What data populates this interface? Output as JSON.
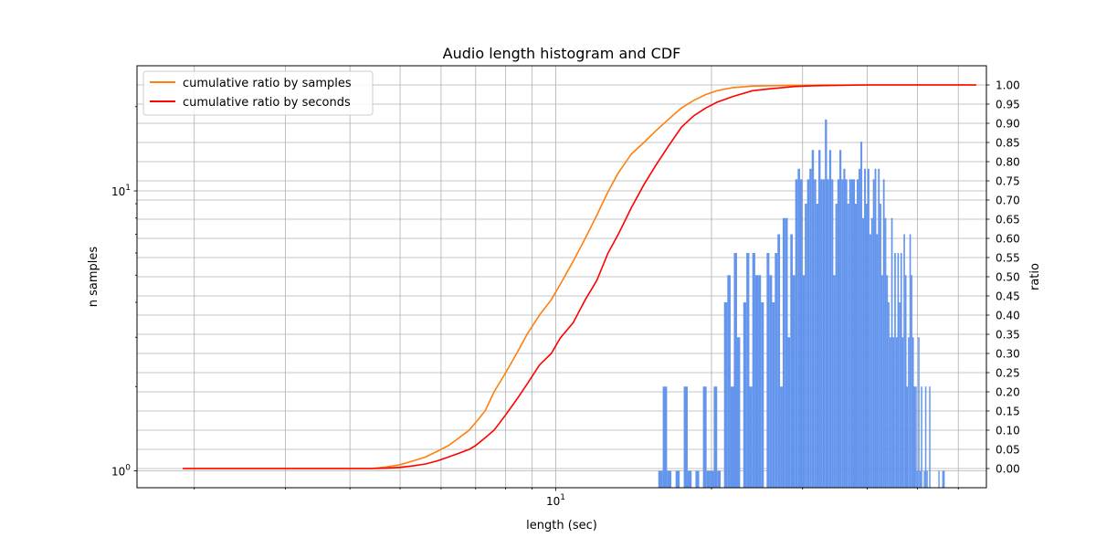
{
  "chart_data": {
    "type": "bar",
    "title": "Audio length histogram and CDF",
    "xlabel": "length (sec)",
    "ylabel": "n samples",
    "y2label": "ratio",
    "x_scale": "log",
    "y_scale": "log",
    "xlim": [
      1.55,
      68
    ],
    "ylim": [
      0.87,
      28
    ],
    "y2lim": [
      -0.05,
      1.05
    ],
    "x_tick_labels": [
      {
        "value": 10,
        "label": "10^1"
      }
    ],
    "y_tick_labels": [
      {
        "value": 1,
        "label": "10^0"
      },
      {
        "value": 10,
        "label": "10^1"
      }
    ],
    "y2_tick_labels": [
      "0.00",
      "0.05",
      "0.10",
      "0.15",
      "0.20",
      "0.25",
      "0.30",
      "0.35",
      "0.40",
      "0.45",
      "0.50",
      "0.55",
      "0.60",
      "0.65",
      "0.70",
      "0.75",
      "0.80",
      "0.85",
      "0.90",
      "0.95",
      "1.00"
    ],
    "grid": true,
    "legend_position": "upper-left",
    "bar_color": "#6495ED",
    "histogram": {
      "bin_edges_approx": "200 equal-width bins from 1.9 to 65 sec",
      "counts": [
        0,
        0,
        0,
        0,
        0,
        0,
        0,
        0,
        0,
        0,
        0,
        0,
        0,
        0,
        0,
        0,
        0,
        0,
        0,
        0,
        0,
        0,
        0,
        0,
        0,
        0,
        0,
        0,
        0,
        0,
        0,
        0,
        0,
        0,
        0,
        0,
        0,
        0,
        0,
        0,
        0,
        0,
        0,
        0,
        1,
        2,
        1,
        0,
        1,
        0,
        2,
        1,
        0,
        1,
        0,
        2,
        1,
        1,
        2,
        1,
        0,
        4,
        5,
        2,
        6,
        3,
        0,
        4,
        6,
        2,
        6,
        5,
        5,
        4,
        0,
        6,
        5,
        4,
        6,
        7,
        2,
        8,
        8,
        3,
        7,
        5,
        11,
        12,
        11,
        5,
        9,
        11,
        12,
        14,
        11,
        9,
        14,
        11,
        11,
        18,
        11,
        14,
        11,
        5,
        9,
        11,
        14,
        11,
        12,
        11,
        9,
        11,
        11,
        11,
        9,
        11,
        12,
        15,
        8,
        12,
        9,
        12,
        7,
        8,
        11,
        12,
        7,
        12,
        9,
        5,
        11,
        8,
        5,
        4,
        3,
        8,
        3,
        6,
        3,
        6,
        4,
        6,
        3,
        7,
        5,
        2,
        3,
        7,
        5,
        3,
        2,
        2,
        1,
        3,
        1,
        2,
        0,
        1,
        2,
        1,
        0,
        2,
        0,
        0,
        0,
        0,
        0,
        0,
        1,
        0,
        0,
        1,
        1,
        0,
        0,
        0,
        0,
        0,
        0,
        0,
        0,
        0,
        0,
        0,
        0,
        0,
        0,
        0,
        0,
        0,
        0,
        0,
        0,
        0,
        0,
        0,
        0,
        0,
        0,
        0
      ]
    },
    "series": [
      {
        "name": "cumulative ratio by samples",
        "color": "#ff7f0e",
        "x": [
          1.9,
          4.4,
          4.7,
          5.0,
          5.3,
          5.6,
          5.9,
          6.2,
          6.5,
          6.8,
          7.0,
          7.3,
          7.6,
          8.0,
          8.4,
          8.8,
          9.3,
          9.8,
          10.2,
          10.8,
          11.4,
          12.0,
          12.6,
          13.2,
          14.0,
          14.8,
          15.6,
          16.5,
          17.5,
          18.5,
          19.5,
          20.5,
          22.0,
          24.0,
          26.0,
          29.0,
          32.0,
          40.0,
          65.0
        ],
        "y": [
          0.0,
          0.0,
          0.004,
          0.01,
          0.02,
          0.03,
          0.045,
          0.06,
          0.08,
          0.1,
          0.12,
          0.15,
          0.2,
          0.25,
          0.3,
          0.35,
          0.4,
          0.44,
          0.48,
          0.54,
          0.6,
          0.66,
          0.72,
          0.77,
          0.82,
          0.85,
          0.88,
          0.91,
          0.94,
          0.96,
          0.975,
          0.985,
          0.993,
          0.997,
          0.998,
          0.999,
          0.9995,
          1.0,
          1.0
        ]
      },
      {
        "name": "cumulative ratio by seconds",
        "color": "#ff0000",
        "x": [
          1.9,
          4.4,
          4.7,
          5.0,
          5.3,
          5.6,
          5.9,
          6.2,
          6.5,
          6.8,
          7.0,
          7.3,
          7.6,
          8.0,
          8.4,
          8.8,
          9.3,
          9.8,
          10.2,
          10.8,
          11.4,
          12.0,
          12.6,
          13.2,
          14.0,
          14.8,
          15.6,
          16.5,
          17.5,
          18.5,
          19.5,
          20.5,
          22.0,
          24.0,
          26.0,
          29.0,
          32.0,
          40.0,
          65.0
        ],
        "y": [
          0.0,
          0.0,
          0.001,
          0.003,
          0.007,
          0.012,
          0.02,
          0.03,
          0.04,
          0.05,
          0.06,
          0.08,
          0.1,
          0.14,
          0.18,
          0.22,
          0.27,
          0.3,
          0.34,
          0.38,
          0.44,
          0.49,
          0.56,
          0.61,
          0.68,
          0.74,
          0.79,
          0.84,
          0.89,
          0.92,
          0.94,
          0.955,
          0.97,
          0.985,
          0.99,
          0.996,
          0.998,
          1.0,
          1.0
        ]
      }
    ]
  }
}
